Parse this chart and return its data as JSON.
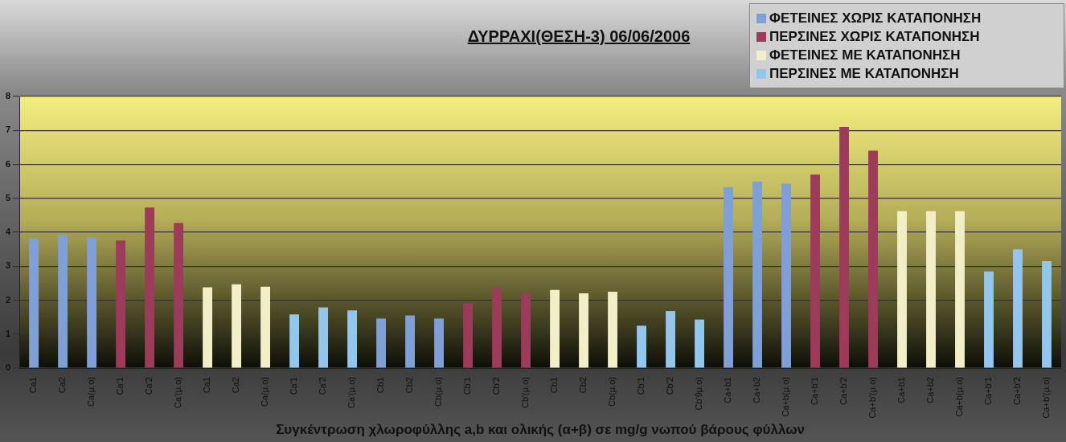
{
  "chart_data": {
    "type": "bar",
    "title": "ΔΥΡΡΑΧΙ(ΘΕΣΗ-3) 06/06/2006",
    "xlabel": "Συγκέντρωση χλωροφύλλης a,b και ολικής (α+β) σε mg/g νωπού βάρους φύλλων",
    "categories": [
      "Ca1",
      "Ca2",
      "Ca(μ.ο)",
      "Ca'1",
      "Ca'2",
      "Ca'(μ.ο)",
      "Ca1",
      "Ca2",
      "Ca(μ.ο)",
      "Ca'1",
      "Ca'2",
      "Ca'(μ.ο)",
      "Cb1",
      "Cb2",
      "Cb(μ.ο)",
      "Cb'1",
      "Cb'2",
      "Cb'(μ.ο)",
      "Cb1",
      "Cb2",
      "Cb(μ.ο)",
      "Cb'1",
      "Cb'2",
      "Cb'9μ.ο)",
      "Ca+b1",
      "Ca+b2",
      "Ca+b(μ.ο)",
      "Ca+b'1",
      "Ca+b'2",
      "Ca+b'(μ.ο)",
      "Ca+b1",
      "Ca+b2",
      "Ca+b(μ.ο)",
      "Ca+b'1",
      "Ca+b'2",
      "Ca+b'(μ.ο)"
    ],
    "series": [
      {
        "name": "ΦΕΤΕΙΝΕΣ ΧΩΡΙΣ ΚΑΤΑΠΟΝΗΣΗ",
        "color": "#7f9fd8",
        "values": [
          3.82,
          3.92,
          3.85,
          null,
          null,
          null,
          null,
          null,
          null,
          null,
          null,
          null,
          1.46,
          1.55,
          1.46,
          null,
          null,
          null,
          null,
          null,
          null,
          null,
          null,
          null,
          5.33,
          5.49,
          5.43,
          null,
          null,
          null,
          null,
          null,
          null,
          null,
          null,
          null
        ]
      },
      {
        "name": "ΠΕΡΣΙΝΕΣ ΧΩΡΙΣ ΚΑΤΑΠΟΝΗΣΗ",
        "color": "#9e3a5a",
        "values": [
          null,
          null,
          null,
          3.76,
          4.73,
          4.27,
          null,
          null,
          null,
          null,
          null,
          null,
          null,
          null,
          null,
          1.91,
          2.38,
          2.2,
          null,
          null,
          null,
          null,
          null,
          null,
          null,
          null,
          null,
          5.7,
          7.1,
          6.4,
          null,
          null,
          null,
          null,
          null,
          null
        ]
      },
      {
        "name": "ΦΕΤΕΙΝΕΣ ΜΕ ΚΑΤΑΠΟΝΗΣΗ",
        "color": "#f2eec8",
        "values": [
          null,
          null,
          null,
          null,
          null,
          null,
          2.38,
          2.47,
          2.4,
          null,
          null,
          null,
          null,
          null,
          null,
          null,
          null,
          null,
          2.3,
          2.2,
          2.25,
          null,
          null,
          null,
          null,
          null,
          null,
          null,
          null,
          null,
          4.62,
          4.62,
          4.62,
          null,
          null,
          null
        ]
      },
      {
        "name": "ΠΕΡΣΙΝΕΣ ΜΕ ΚΑΤΑΠΟΝΗΣΗ",
        "color": "#93c6ec",
        "values": [
          null,
          null,
          null,
          null,
          null,
          null,
          null,
          null,
          null,
          1.58,
          1.79,
          1.7,
          null,
          null,
          null,
          null,
          null,
          null,
          null,
          null,
          null,
          1.25,
          1.68,
          1.43,
          null,
          null,
          null,
          null,
          null,
          null,
          null,
          null,
          null,
          2.85,
          3.5,
          3.15
        ]
      }
    ],
    "ylim": [
      0,
      8
    ],
    "yticks": [
      0,
      1,
      2,
      3,
      4,
      5,
      6,
      7,
      8
    ],
    "grid": "y",
    "legend": "top right"
  }
}
